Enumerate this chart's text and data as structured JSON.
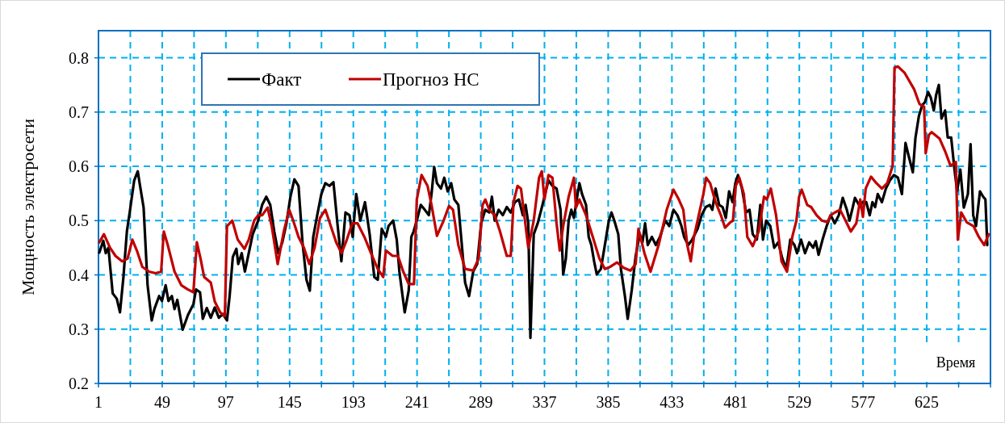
{
  "chart_data": {
    "type": "line",
    "xlabel": "Время",
    "ylabel": "Мощность электросети",
    "xlim": [
      1,
      673
    ],
    "ylim": [
      0.2,
      0.85
    ],
    "xticks": [
      1,
      {
        "value": 25,
        "label": null
      },
      49,
      {
        "value": 73,
        "label": null
      },
      97,
      {
        "value": 121,
        "label": null
      },
      145,
      {
        "value": 169,
        "label": null
      },
      193,
      {
        "value": 217,
        "label": null
      },
      241,
      {
        "value": 265,
        "label": null
      },
      289,
      {
        "value": 313,
        "label": null
      },
      337,
      {
        "value": 361,
        "label": null
      },
      385,
      {
        "value": 409,
        "label": null
      },
      433,
      {
        "value": 457,
        "label": null
      },
      481,
      {
        "value": 505,
        "label": null
      },
      529,
      {
        "value": 553,
        "label": null
      },
      577,
      {
        "value": 601,
        "label": null
      },
      625,
      {
        "value": 649,
        "label": null
      },
      {
        "value": 673,
        "label": null
      }
    ],
    "yticks": [
      0.2,
      0.3,
      0.4,
      0.5,
      0.6,
      0.7,
      0.8
    ],
    "grid": true,
    "legend": "top left",
    "line_style": "solid",
    "marker": "none",
    "series": [
      {
        "name": "Факт",
        "color": "#000000",
        "x": [
          1.6,
          4.6,
          6.5,
          8.5,
          11.7,
          14.8,
          17.2,
          19.8,
          22.4,
          24.8,
          27.9,
          30.6,
          32,
          35,
          38,
          41.1,
          43.1,
          46.7,
          48.8,
          51.6,
          53.7,
          56.3,
          58.3,
          60.4,
          64.4,
          68.4,
          72.5,
          74.5,
          77.5,
          79.6,
          82.6,
          85.6,
          88.6,
          91.7,
          94.7,
          97.8,
          99.8,
          102.2,
          104.9,
          106.3,
          108.9,
          111.3,
          114.2,
          117.2,
          121.3,
          124.3,
          127.4,
          130.4,
          133.4,
          136.5,
          139.5,
          142.6,
          145.6,
          148.6,
          151.7,
          154.7,
          157.7,
          160.2,
          162.8,
          165.8,
          168.9,
          171.9,
          175,
          178,
          181,
          184,
          187.1,
          190.1,
          192.5,
          195.2,
          198.2,
          201.8,
          205.3,
          208.8,
          211.4,
          214.4,
          217.5,
          219.5,
          223,
          225.7,
          227.7,
          231.7,
          234.7,
          236.7,
          238.4,
          240.8,
          243.8,
          246.8,
          249.9,
          251.9,
          253.9,
          256,
          259,
          261.5,
          264.1,
          266.7,
          269.1,
          272.1,
          274.2,
          277.2,
          280.2,
          283.3,
          286.3,
          289.3,
          292.4,
          295.4,
          297.4,
          299.5,
          302.5,
          305.6,
          308.6,
          311.6,
          314.7,
          317.7,
          320.7,
          322.8,
          324.8,
          326.4,
          328.9,
          331.9,
          335,
          337,
          340,
          343,
          346.1,
          349.1,
          351.1,
          353.1,
          355.2,
          357.2,
          359.2,
          361.3,
          363.3,
          365.3,
          368.3,
          370.3,
          372.3,
          374.4,
          376.4,
          379.5,
          382.5,
          385.5,
          387.5,
          389.6,
          392.6,
          394.6,
          397.6,
          399.7,
          402.7,
          405.7,
          408.8,
          410.8,
          412.8,
          414.8,
          417.9,
          420.9,
          424,
          428,
          431,
          434.2,
          437.2,
          440.2,
          442.2,
          445.3,
          448.3,
          452.4,
          455.4,
          458.5,
          461.5,
          463.5,
          465.9,
          468.6,
          471.2,
          473.6,
          476.1,
          478.7,
          480.8,
          482.8,
          485.8,
          488.9,
          491.5,
          493.9,
          497,
          499.6,
          501.6,
          504,
          507.1,
          510.1,
          513.1,
          516.2,
          519.2,
          522.2,
          525.3,
          527.3,
          530.3,
          533.3,
          536.4,
          539.4,
          541.4,
          543.5,
          546.5,
          549.6,
          552.6,
          555.7,
          558.7,
          561.7,
          564.8,
          566.8,
          568.8,
          570.9,
          573.9,
          576.9,
          579.4,
          582,
          584.1,
          586.1,
          588.1,
          591.2,
          594.2,
          597.2,
          600.3,
          603.3,
          606.3,
          609,
          611.4,
          614.5,
          616.5,
          619.1,
          621.6,
          623.6,
          626,
          628,
          630.3,
          632.1,
          634.1,
          636.1,
          638.8,
          640.8,
          643.4,
          645.9,
          647.9,
          650.3,
          652.9,
          656,
          658,
          660,
          662.1,
          665.1,
          667.5,
          669.2,
          670.6
        ],
        "values": [
          0.441,
          0.463,
          0.44,
          0.45,
          0.366,
          0.356,
          0.331,
          0.396,
          0.48,
          0.52,
          0.574,
          0.591,
          0.569,
          0.524,
          0.381,
          0.316,
          0.337,
          0.361,
          0.352,
          0.381,
          0.352,
          0.361,
          0.337,
          0.354,
          0.299,
          0.326,
          0.346,
          0.373,
          0.368,
          0.319,
          0.339,
          0.321,
          0.34,
          0.321,
          0.328,
          0.316,
          0.361,
          0.433,
          0.448,
          0.42,
          0.44,
          0.406,
          0.44,
          0.475,
          0.5,
          0.529,
          0.544,
          0.529,
          0.48,
          0.44,
          0.46,
          0.495,
          0.544,
          0.576,
          0.564,
          0.46,
          0.391,
          0.371,
          0.47,
          0.51,
          0.549,
          0.569,
          0.564,
          0.571,
          0.495,
          0.425,
          0.515,
          0.51,
          0.47,
          0.549,
          0.5,
          0.534,
          0.475,
          0.396,
          0.391,
          0.485,
          0.47,
          0.49,
          0.5,
          0.465,
          0.406,
          0.331,
          0.371,
          0.47,
          0.48,
          0.5,
          0.529,
          0.52,
          0.51,
          0.549,
          0.599,
          0.569,
          0.559,
          0.579,
          0.554,
          0.569,
          0.539,
          0.529,
          0.47,
          0.386,
          0.361,
          0.406,
          0.42,
          0.495,
          0.52,
          0.515,
          0.544,
          0.5,
          0.52,
          0.51,
          0.525,
          0.515,
          0.534,
          0.539,
          0.51,
          0.529,
          0.495,
          0.284,
          0.475,
          0.495,
          0.524,
          0.544,
          0.574,
          0.564,
          0.559,
          0.52,
          0.401,
          0.43,
          0.5,
          0.52,
          0.505,
          0.539,
          0.569,
          0.549,
          0.529,
          0.47,
          0.455,
          0.425,
          0.401,
          0.411,
          0.455,
          0.5,
          0.515,
          0.5,
          0.475,
          0.411,
          0.361,
          0.319,
          0.371,
          0.435,
          0.475,
          0.46,
          0.495,
          0.455,
          0.47,
          0.455,
          0.47,
          0.5,
          0.49,
          0.52,
          0.51,
          0.49,
          0.47,
          0.455,
          0.465,
          0.485,
          0.51,
          0.525,
          0.529,
          0.52,
          0.559,
          0.529,
          0.525,
          0.505,
          0.554,
          0.534,
          0.569,
          0.584,
          0.559,
          0.515,
          0.52,
          0.475,
          0.465,
          0.529,
          0.465,
          0.5,
          0.49,
          0.45,
          0.46,
          0.43,
          0.411,
          0.465,
          0.455,
          0.44,
          0.465,
          0.44,
          0.46,
          0.45,
          0.462,
          0.437,
          0.465,
          0.49,
          0.51,
          0.495,
          0.51,
          0.542,
          0.52,
          0.5,
          0.52,
          0.542,
          0.529,
          0.534,
          0.534,
          0.51,
          0.534,
          0.525,
          0.549,
          0.534,
          0.559,
          0.574,
          0.584,
          0.579,
          0.549,
          0.643,
          0.619,
          0.589,
          0.653,
          0.693,
          0.713,
          0.718,
          0.737,
          0.727,
          0.703,
          0.732,
          0.75,
          0.688,
          0.703,
          0.653,
          0.653,
          0.594,
          0.554,
          0.594,
          0.524,
          0.549,
          0.641,
          0.51,
          0.49,
          0.554,
          0.544,
          0.539,
          0.455
        ]
      },
      {
        "name": "Прогноз НС",
        "color": "#c00000",
        "x": [
          1.6,
          5.1,
          9.7,
          13.8,
          18.8,
          22.9,
          26.5,
          29.9,
          34,
          39.1,
          44.1,
          48.2,
          50.2,
          53.2,
          58.3,
          63.4,
          68.4,
          72.5,
          75.1,
          77.9,
          80.6,
          85.6,
          88.6,
          92.7,
          96.2,
          97.8,
          101.8,
          105.9,
          111,
          114.2,
          118.3,
          121.3,
          124.3,
          128.4,
          131.5,
          136,
          140.6,
          144.7,
          147.7,
          151.7,
          155.8,
          159.8,
          163.8,
          167.9,
          171.9,
          176,
          180.1,
          184.1,
          188.1,
          192.2,
          196.2,
          201.3,
          206.3,
          211.4,
          215.5,
          217.5,
          222.6,
          226.6,
          230.6,
          234.7,
          238.7,
          240.8,
          244.4,
          248.9,
          251.9,
          256,
          261,
          265.1,
          268.1,
          272.1,
          277.2,
          283.3,
          287.4,
          290.4,
          292.4,
          295.4,
          299.5,
          303.5,
          308.6,
          311.6,
          313.7,
          316.7,
          319.3,
          321.8,
          324.8,
          328.9,
          332.9,
          335,
          337,
          340,
          343,
          346.1,
          348.5,
          351.1,
          355.2,
          359.2,
          360.7,
          363.3,
          368.3,
          373.4,
          378.4,
          382.5,
          386.6,
          391.6,
          396.7,
          401.8,
          405.7,
          407.8,
          412.3,
          416.9,
          423,
          429.1,
          434.2,
          438.2,
          441.6,
          444.6,
          447.2,
          449.6,
          453.7,
          456.7,
          458.8,
          461.8,
          465.9,
          469.9,
          473,
          477,
          479,
          481.1,
          483.8,
          487.2,
          489.8,
          493.9,
          498.4,
          502.4,
          504.5,
          507.5,
          511.5,
          515.6,
          519.7,
          523.7,
          526.8,
          528.8,
          530.8,
          534.9,
          537.9,
          542,
          546,
          550.1,
          552.6,
          555.7,
          559.7,
          563.8,
          567.8,
          571.9,
          574.9,
          576.9,
          579,
          583,
          587.1,
          591.2,
          595.2,
          599.3,
          600.7,
          603.3,
          608.4,
          615.5,
          619.5,
          623,
          624.2,
          626.6,
          628.7,
          634.7,
          638.8,
          642.9,
          646.9,
          648.4,
          651,
          655.1,
          660.2,
          664.2,
          668.3,
          671.7
        ],
        "values": [
          0.46,
          0.475,
          0.45,
          0.435,
          0.425,
          0.43,
          0.465,
          0.445,
          0.415,
          0.406,
          0.403,
          0.406,
          0.48,
          0.455,
          0.406,
          0.381,
          0.373,
          0.368,
          0.46,
          0.43,
          0.396,
          0.386,
          0.351,
          0.331,
          0.324,
          0.49,
          0.5,
          0.465,
          0.448,
          0.465,
          0.5,
          0.51,
          0.51,
          0.524,
          0.49,
          0.42,
          0.48,
          0.52,
          0.5,
          0.47,
          0.45,
          0.42,
          0.45,
          0.505,
          0.52,
          0.49,
          0.46,
          0.44,
          0.465,
          0.495,
          0.495,
          0.47,
          0.44,
          0.411,
          0.396,
          0.445,
          0.435,
          0.435,
          0.406,
          0.383,
          0.383,
          0.539,
          0.584,
          0.564,
          0.529,
          0.472,
          0.5,
          0.527,
          0.52,
          0.455,
          0.411,
          0.408,
          0.43,
          0.529,
          0.539,
          0.52,
          0.51,
          0.48,
          0.435,
          0.435,
          0.534,
          0.564,
          0.559,
          0.51,
          0.45,
          0.5,
          0.579,
          0.591,
          0.539,
          0.584,
          0.579,
          0.495,
          0.445,
          0.49,
          0.544,
          0.579,
          0.524,
          0.539,
          0.51,
          0.47,
          0.43,
          0.411,
          0.415,
          0.423,
          0.413,
          0.408,
          0.42,
          0.485,
          0.44,
          0.406,
          0.455,
          0.52,
          0.557,
          0.539,
          0.52,
          0.455,
          0.425,
          0.47,
          0.515,
          0.549,
          0.579,
          0.569,
          0.534,
          0.51,
          0.487,
          0.497,
          0.5,
          0.564,
          0.579,
          0.549,
          0.47,
          0.453,
          0.48,
          0.544,
          0.539,
          0.559,
          0.51,
          0.425,
          0.406,
          0.47,
          0.5,
          0.544,
          0.557,
          0.529,
          0.525,
          0.51,
          0.5,
          0.497,
          0.51,
          0.515,
          0.52,
          0.5,
          0.48,
          0.495,
          0.539,
          0.507,
          0.559,
          0.581,
          0.569,
          0.559,
          0.569,
          0.601,
          0.782,
          0.784,
          0.772,
          0.742,
          0.715,
          0.71,
          0.624,
          0.658,
          0.663,
          0.651,
          0.628,
          0.601,
          0.608,
          0.465,
          0.515,
          0.497,
          0.49,
          0.47,
          0.455,
          0.475
        ]
      }
    ]
  }
}
